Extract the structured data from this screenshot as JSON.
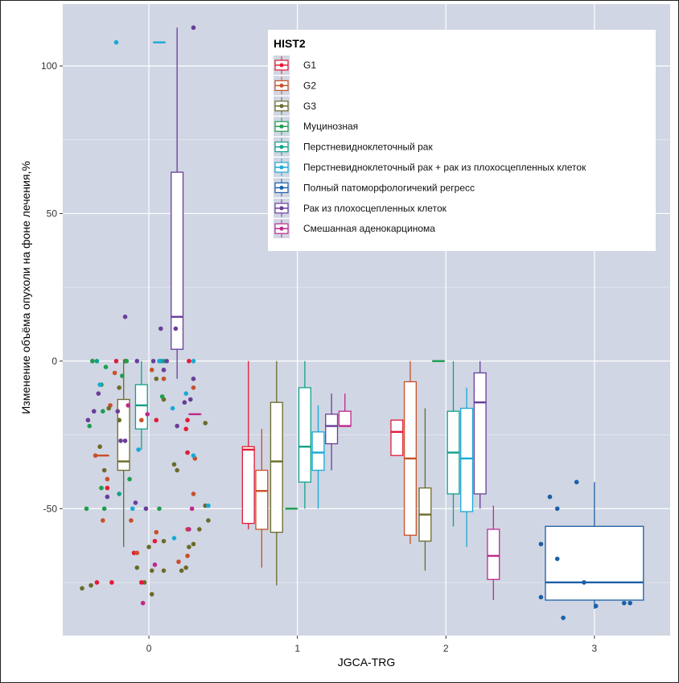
{
  "chart_data": {
    "type": "box",
    "title": "",
    "xlabel": "JGCA-TRG",
    "ylabel": "Изменение объёма опухоли на фоне лечения,%",
    "x_categories": [
      "0",
      "1",
      "2",
      "3"
    ],
    "y_ticks": [
      -50,
      0,
      50,
      100
    ],
    "ylim": [
      -93,
      121
    ],
    "xlim": [
      -0.58,
      3.51
    ],
    "grid": true,
    "legend": {
      "title": "HIST2",
      "position": "top-right",
      "entries": [
        {
          "name": "G1",
          "color": "#E41A37"
        },
        {
          "name": "G2",
          "color": "#C8502A"
        },
        {
          "name": "G3",
          "color": "#6B6B2A"
        },
        {
          "name": "Муцинозная",
          "color": "#1E9E50"
        },
        {
          "name": "Перстневидноклеточный рак",
          "color": "#12A08A"
        },
        {
          "name": "Перстневидноклеточный рак + рак из плохосцепленных клеток",
          "color": "#19A9D6"
        },
        {
          "name": "Полный патоморфологичекий регресс",
          "color": "#1B5FA8"
        },
        {
          "name": "Рак из плохосцепленных клеток",
          "color": "#6A3D9A"
        },
        {
          "name": "Смешанная аденокарцинома",
          "color": "#C0288E"
        }
      ]
    },
    "boxes": [
      {
        "x": 0,
        "offset": -0.31,
        "group": "G2",
        "q1": -32,
        "median": -32,
        "q3": -32,
        "lo": -32,
        "hi": -32
      },
      {
        "x": 0,
        "offset": -0.17,
        "group": "G3",
        "q1": -37,
        "median": -34,
        "q3": -13,
        "lo": -63,
        "hi": 0
      },
      {
        "x": 0,
        "offset": -0.05,
        "group": "Перстневидноклеточный рак",
        "q1": -23,
        "median": -15,
        "q3": -8,
        "lo": -30,
        "hi": 0
      },
      {
        "x": 0,
        "offset": 0.07,
        "group": "Перстневидноклеточный рак + рак из плохосцепленных клеток",
        "q1": 108,
        "median": 108,
        "q3": 108,
        "lo": 108,
        "hi": 108
      },
      {
        "x": 0,
        "offset": 0.19,
        "group": "Рак из плохосцепленных клеток",
        "q1": 4,
        "median": 15,
        "q3": 64,
        "lo": -6,
        "hi": 113
      },
      {
        "x": 0,
        "offset": 0.31,
        "group": "Смешанная аденокарцинома",
        "q1": -18,
        "median": -18,
        "q3": -18,
        "lo": -18,
        "hi": -18
      },
      {
        "x": 1,
        "offset": -0.33,
        "group": "G1",
        "q1": -55,
        "median": -30,
        "q3": -29,
        "lo": -57,
        "hi": 0
      },
      {
        "x": 1,
        "offset": -0.24,
        "group": "G2",
        "q1": -57,
        "median": -44,
        "q3": -37,
        "lo": -70,
        "hi": -23
      },
      {
        "x": 1,
        "offset": -0.14,
        "group": "G3",
        "q1": -58,
        "median": -34,
        "q3": -14,
        "lo": -76,
        "hi": 0
      },
      {
        "x": 1,
        "offset": -0.04,
        "group": "Муцинозная",
        "q1": -50,
        "median": -50,
        "q3": -50,
        "lo": -50,
        "hi": -50
      },
      {
        "x": 1,
        "offset": 0.05,
        "group": "Перстневидноклеточный рак",
        "q1": -41,
        "median": -29,
        "q3": -9,
        "lo": -50,
        "hi": 0
      },
      {
        "x": 1,
        "offset": 0.14,
        "group": "Перстневидноклеточный рак + рак из плохосцепленных клеток",
        "q1": -37,
        "median": -31,
        "q3": -24,
        "lo": -50,
        "hi": -15
      },
      {
        "x": 1,
        "offset": 0.23,
        "group": "Рак из плохосцепленных клеток",
        "q1": -28,
        "median": -22,
        "q3": -18,
        "lo": -37,
        "hi": -11
      },
      {
        "x": 1,
        "offset": 0.32,
        "group": "Смешанная аденокарцинома",
        "q1": -22,
        "median": -22,
        "q3": -17,
        "lo": -22,
        "hi": -11
      },
      {
        "x": 2,
        "offset": -0.33,
        "group": "G1",
        "q1": -32,
        "median": -24,
        "q3": -20,
        "lo": -32,
        "hi": -20
      },
      {
        "x": 2,
        "offset": -0.24,
        "group": "G2",
        "q1": -59,
        "median": -33,
        "q3": -7,
        "lo": -62,
        "hi": 0
      },
      {
        "x": 2,
        "offset": -0.14,
        "group": "G3",
        "q1": -61,
        "median": -52,
        "q3": -43,
        "lo": -71,
        "hi": -16
      },
      {
        "x": 2,
        "offset": -0.05,
        "group": "Муцинозная",
        "q1": 0,
        "median": 0,
        "q3": 0,
        "lo": 0,
        "hi": 0
      },
      {
        "x": 2,
        "offset": 0.05,
        "group": "Перстневидноклеточный рак",
        "q1": -45,
        "median": -31,
        "q3": -17,
        "lo": -56,
        "hi": 0
      },
      {
        "x": 2,
        "offset": 0.14,
        "group": "Перстневидноклеточный рак + рак из плохосцепленных клеток",
        "q1": -51,
        "median": -33,
        "q3": -16,
        "lo": -63,
        "hi": -9
      },
      {
        "x": 2,
        "offset": 0.23,
        "group": "Рак из плохосцепленных клеток",
        "q1": -45,
        "median": -14,
        "q3": -4,
        "lo": -50,
        "hi": 0
      },
      {
        "x": 2,
        "offset": 0.32,
        "group": "Смешанная аденокарцинома",
        "q1": -74,
        "median": -66,
        "q3": -57,
        "lo": -81,
        "hi": -49
      },
      {
        "x": 3,
        "offset": 0,
        "group": "Полный патоморфологичекий регресс",
        "q1": -81,
        "median": -75,
        "q3": -56,
        "lo": -84,
        "hi": -41
      }
    ],
    "points": [
      {
        "x": -0.38,
        "y": 0,
        "group": "G3"
      },
      {
        "x": -0.36,
        "y": -32,
        "group": "G2"
      },
      {
        "x": -0.22,
        "y": 108,
        "group": "Перстневидноклеточный рак + рак из плохосцепленных клеток"
      },
      {
        "x": -0.16,
        "y": 15,
        "group": "Рак из плохосцепленных клеток"
      },
      {
        "x": 0.08,
        "y": 0,
        "group": "Перстневидноклеточный рак"
      },
      {
        "x": 0.1,
        "y": -13,
        "group": "G3"
      },
      {
        "x": 0.17,
        "y": -35,
        "group": "G3"
      },
      {
        "x": 0.19,
        "y": -37,
        "group": "G3"
      },
      {
        "x": 0.26,
        "y": -31,
        "group": "Перстневидноклеточный рак"
      },
      {
        "x": 0.27,
        "y": -63,
        "group": "G3"
      },
      {
        "x": 0.3,
        "y": -6,
        "group": "Рак из плохосцепленных клеток"
      },
      {
        "x": 0.31,
        "y": -33,
        "group": "G2"
      },
      {
        "x": 0.3,
        "y": 113,
        "group": "Рак из плохосцепленных клеток"
      },
      {
        "x": -0.38,
        "y": 0,
        "group": "Муцинозная"
      },
      {
        "x": -0.41,
        "y": -20,
        "group": "Рак из плохосцепленных клеток"
      },
      {
        "x": -0.4,
        "y": -22,
        "group": "Муцинозная"
      },
      {
        "x": -0.42,
        "y": -50,
        "group": "Муцинозная"
      },
      {
        "x": -0.39,
        "y": -76,
        "group": "G3"
      },
      {
        "x": -0.37,
        "y": -17,
        "group": "Рак из плохосцепленных клеток"
      },
      {
        "x": -0.33,
        "y": -29,
        "group": "G3"
      },
      {
        "x": -0.32,
        "y": -8,
        "group": "Муцинозная"
      },
      {
        "x": -0.34,
        "y": -11,
        "group": "Рак из плохосцепленных клеток"
      },
      {
        "x": -0.3,
        "y": -37,
        "group": "G3"
      },
      {
        "x": -0.31,
        "y": -54,
        "group": "G2"
      },
      {
        "x": -0.3,
        "y": -50,
        "group": "Муцинозная"
      },
      {
        "x": -0.29,
        "y": -2,
        "group": "Муцинозная"
      },
      {
        "x": -0.28,
        "y": -40,
        "group": "G2"
      },
      {
        "x": -0.26,
        "y": -15,
        "group": "G2"
      },
      {
        "x": -0.22,
        "y": 0,
        "group": "G1"
      },
      {
        "x": -0.23,
        "y": -4,
        "group": "G2"
      },
      {
        "x": -0.21,
        "y": -17,
        "group": "Рак из плохосцепленных клеток"
      },
      {
        "x": -0.2,
        "y": -9,
        "group": "G3"
      },
      {
        "x": -0.18,
        "y": -5,
        "group": "Муцинозная"
      },
      {
        "x": -0.19,
        "y": -27,
        "group": "Рак из плохосцепленных клеток"
      },
      {
        "x": -0.16,
        "y": 0,
        "group": "G3"
      },
      {
        "x": -0.14,
        "y": -15,
        "group": "Смешанная аденокарцинома"
      },
      {
        "x": -0.13,
        "y": -40,
        "group": "Муцинозная"
      },
      {
        "x": -0.12,
        "y": -54,
        "group": "G2"
      },
      {
        "x": -0.11,
        "y": -50,
        "group": "Перстневидноклеточный рак + рак из плохосцепленных клеток"
      },
      {
        "x": -0.1,
        "y": -65,
        "group": "G1"
      },
      {
        "x": -0.08,
        "y": -65,
        "group": "G2"
      },
      {
        "x": -0.08,
        "y": -70,
        "group": "G3"
      },
      {
        "x": -0.07,
        "y": -30,
        "group": "Перстневидноклеточный рак + рак из плохосцепленных клеток"
      },
      {
        "x": -0.03,
        "y": -75,
        "group": "G3"
      },
      {
        "x": 0.03,
        "y": 0,
        "group": "Рак из плохосцепленных клеток"
      },
      {
        "x": 0.07,
        "y": 0,
        "group": "Перстневидноклеточный рак + рак из плохосцепленных клеток"
      },
      {
        "x": 0.1,
        "y": 0,
        "group": "Перстневидноклеточный рак"
      },
      {
        "x": 0.12,
        "y": 0,
        "group": "Рак из плохосцепленных клеток"
      },
      {
        "x": 0.08,
        "y": 11,
        "group": "Рак из плохосцепленных клеток"
      },
      {
        "x": 0.18,
        "y": 11,
        "group": "Рак из плохосцепленных клеток"
      },
      {
        "x": 0.3,
        "y": 0,
        "group": "Перстневидноклеточный рак + рак из плохосцепленных клеток"
      },
      {
        "x": 0.02,
        "y": -3,
        "group": "G2"
      },
      {
        "x": 0.05,
        "y": -6,
        "group": "G3"
      },
      {
        "x": -0.01,
        "y": -18,
        "group": "Смешанная аденокарцинома"
      },
      {
        "x": 0.09,
        "y": -12,
        "group": "Муцинозная"
      },
      {
        "x": 0.16,
        "y": -16,
        "group": "Перстневидноклеточный рак + рак из плохосцепленных клеток"
      },
      {
        "x": 0.19,
        "y": -22,
        "group": "Рак из плохосцепленных клеток"
      },
      {
        "x": 0.3,
        "y": -32,
        "group": "Перстневидноклеточный рак + рак из плохосцепленных клеток"
      },
      {
        "x": 0.26,
        "y": -57,
        "group": "G2"
      },
      {
        "x": 0.27,
        "y": -57,
        "group": "Смешанная аденокарцинома"
      },
      {
        "x": 0.29,
        "y": -50,
        "group": "Смешанная аденокарцинома"
      },
      {
        "x": 0.3,
        "y": -62,
        "group": "G3"
      },
      {
        "x": 0.26,
        "y": -66,
        "group": "G2"
      },
      {
        "x": 0.22,
        "y": -71,
        "group": "G3"
      },
      {
        "x": 0.3,
        "y": -45,
        "group": "G2"
      },
      {
        "x": 0.34,
        "y": -57,
        "group": "G3"
      },
      {
        "x": 0.1,
        "y": -71,
        "group": "G3"
      },
      {
        "x": 0.02,
        "y": -79,
        "group": "G3"
      },
      {
        "x": 0.0,
        "y": -63,
        "group": "G3"
      },
      {
        "x": 0.04,
        "y": -61,
        "group": "G1"
      },
      {
        "x": -0.45,
        "y": -77,
        "group": "G3"
      },
      {
        "x": -0.35,
        "y": 0,
        "group": "Перстневидноклеточный рак"
      },
      {
        "x": -0.33,
        "y": -8,
        "group": "Перстневидноклеточный рак + рак из плохосцепленных клеток"
      },
      {
        "x": -0.28,
        "y": -43,
        "group": "G1"
      },
      {
        "x": -0.31,
        "y": -17,
        "group": "Муцинозная"
      },
      {
        "x": -0.27,
        "y": -16,
        "group": "G3"
      },
      {
        "x": -0.15,
        "y": 0,
        "group": "Муцинозная"
      },
      {
        "x": -0.09,
        "y": -48,
        "group": "Рак из плохосцепленных клеток"
      },
      {
        "x": -0.02,
        "y": -50,
        "group": "Рак из плохосцепленных клеток"
      },
      {
        "x": -0.05,
        "y": -20,
        "group": "G2"
      },
      {
        "x": -0.25,
        "y": -75,
        "group": "G1"
      },
      {
        "x": -0.16,
        "y": -27,
        "group": "Рак из плохосцепленных клеток"
      },
      {
        "x": -0.08,
        "y": 0,
        "group": "Рак из плохосцепленных клеток"
      },
      {
        "x": -0.04,
        "y": -82,
        "group": "Смешанная аденокарцинома"
      },
      {
        "x": 0.05,
        "y": -20,
        "group": "G1"
      },
      {
        "x": 0.1,
        "y": -3,
        "group": "Рак из плохосцепленных клеток"
      },
      {
        "x": 0.07,
        "y": -50,
        "group": "Муцинозная"
      },
      {
        "x": 0.1,
        "y": -6,
        "group": "G2"
      },
      {
        "x": 0.24,
        "y": -14,
        "group": "Рак из плохосцепленных клеток"
      },
      {
        "x": 0.28,
        "y": -13,
        "group": "Рак из плохосцепленных клеток"
      },
      {
        "x": 0.25,
        "y": -11,
        "group": "Перстневидноклеточный рак + рак из плохосцепленных клеток"
      },
      {
        "x": 0.26,
        "y": -31,
        "group": "G1"
      },
      {
        "x": 0.26,
        "y": -20,
        "group": "G1"
      },
      {
        "x": 0.25,
        "y": -23,
        "group": "G1"
      },
      {
        "x": 0.3,
        "y": -9,
        "group": "G2"
      },
      {
        "x": 0.27,
        "y": 0,
        "group": "G1"
      },
      {
        "x": 0.38,
        "y": -21,
        "group": "G3"
      },
      {
        "x": 0.38,
        "y": -49,
        "group": "G3"
      },
      {
        "x": 0.4,
        "y": -49,
        "group": "Перстневидноклеточный рак + рак из плохосцепленных клеток"
      },
      {
        "x": 0.4,
        "y": -54,
        "group": "G3"
      },
      {
        "x": 0.17,
        "y": -60,
        "group": "Перстневидноклеточный рак + рак из плохосцепленных клеток"
      },
      {
        "x": 0.2,
        "y": -68,
        "group": "G2"
      },
      {
        "x": 0.25,
        "y": -70,
        "group": "G3"
      },
      {
        "x": 0.1,
        "y": -61,
        "group": "G3"
      },
      {
        "x": 0.04,
        "y": -69,
        "group": "Смешанная аденокарцинома"
      },
      {
        "x": 0.02,
        "y": -71,
        "group": "G3"
      },
      {
        "x": -0.05,
        "y": -75,
        "group": "G1"
      },
      {
        "x": -0.2,
        "y": -20,
        "group": "G3"
      },
      {
        "x": -0.32,
        "y": -43,
        "group": "Муцинозная"
      },
      {
        "x": -0.28,
        "y": -46,
        "group": "Рак из плохосцепленных клеток"
      },
      {
        "x": -0.2,
        "y": -45,
        "group": "Перстневидноклеточный рак"
      },
      {
        "x": 0.05,
        "y": -58,
        "group": "G2"
      },
      {
        "x": -0.35,
        "y": -75,
        "group": "G1"
      },
      {
        "x": 2.7,
        "y": -46,
        "group": "Полный патоморфологичекий регресс"
      },
      {
        "x": 2.75,
        "y": -50,
        "group": "Полный патоморфологичекий регресс"
      },
      {
        "x": 2.88,
        "y": -41,
        "group": "Полный патоморфологичекий регресс"
      },
      {
        "x": 2.64,
        "y": -62,
        "group": "Полный патоморфологичекий регресс"
      },
      {
        "x": 2.75,
        "y": -67,
        "group": "Полный патоморфологичекий регресс"
      },
      {
        "x": 2.64,
        "y": -80,
        "group": "Полный патоморфологичекий регресс"
      },
      {
        "x": 2.93,
        "y": -75,
        "group": "Полный патоморфологичекий регресс"
      },
      {
        "x": 3.01,
        "y": -83,
        "group": "Полный патоморфологичекий регресс"
      },
      {
        "x": 3.2,
        "y": -82,
        "group": "Полный патоморфологичекий регресс"
      },
      {
        "x": 3.24,
        "y": -82,
        "group": "Полный патоморфологичекий регресс"
      },
      {
        "x": 2.79,
        "y": -87,
        "group": "Полный патоморфологичекий регресс"
      }
    ]
  }
}
